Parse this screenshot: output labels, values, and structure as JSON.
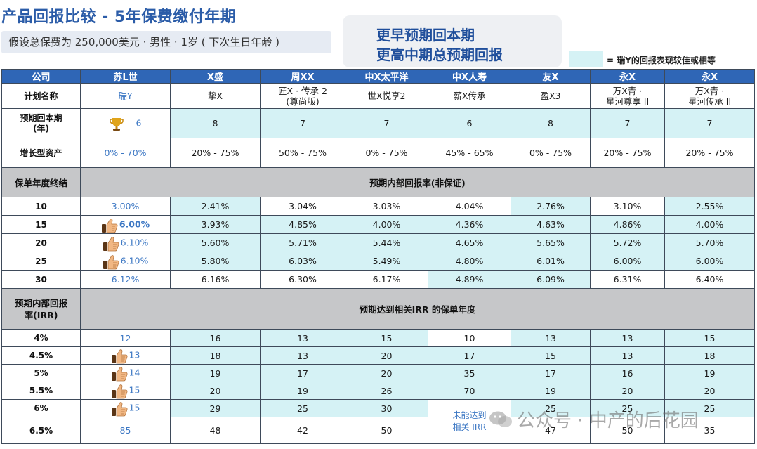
{
  "header": {
    "title": "产品回报比较 - 5年保费缴付年期",
    "subtitle": "假设总保费为 250,000美元 · 男性 · 1岁 ( 下次生日年龄 )",
    "highlight_line1": "更早预期回本期",
    "highlight_line2": "更高中期总预期回报",
    "legend_text": "= 瑞Y的回报表现较佳或相等"
  },
  "colors": {
    "header_blue": "#2f66b6",
    "highlight_cyan": "#d5f2f5",
    "section_gray": "#c6c7c9",
    "value_blue": "#3d78c4"
  },
  "table": {
    "columns": [
      "公司",
      "苏L世",
      "X盛",
      "周XX",
      "中X太平洋",
      "中X人寿",
      "友X",
      "永X",
      "永X"
    ],
    "plan_row": {
      "label": "计划名称",
      "values": [
        "瑞Y",
        "挚X",
        "匠X · 传承 2\n(尊尚版)",
        "世X悦享2",
        "薪X传承",
        "盈X3",
        "万X青 ·\n星河尊享 II",
        "万X青 ·\n星河传承 II"
      ]
    },
    "breakeven_row": {
      "label": "预期回本期\n(年)",
      "icon": "trophy-icon",
      "values": [
        "6",
        "8",
        "7",
        "7",
        "6",
        "8",
        "7",
        "7"
      ]
    },
    "growth_row": {
      "label": "增长型资产",
      "values": [
        "0% - 70%",
        "20% - 75%",
        "50% - 75%",
        "0% - 75%",
        "45% - 65%",
        "0% - 75%",
        "20% - 75%",
        "20% - 75%"
      ]
    },
    "section1": {
      "label": "保单年度终结",
      "title": "预期内部回报率(非保证)"
    },
    "irr_rows": [
      {
        "year": "10",
        "icon": "",
        "values": [
          "3.00%",
          "2.41%",
          "3.04%",
          "3.03%",
          "4.04%",
          "2.76%",
          "3.10%",
          "2.55%"
        ]
      },
      {
        "year": "15",
        "icon": "thumbs-up-icon",
        "values": [
          "6.00%",
          "3.93%",
          "4.85%",
          "4.00%",
          "4.36%",
          "4.63%",
          "4.86%",
          "4.00%"
        ]
      },
      {
        "year": "20",
        "icon": "thumbs-up-icon",
        "values": [
          "6.10%",
          "5.60%",
          "5.71%",
          "5.44%",
          "4.65%",
          "5.65%",
          "5.72%",
          "5.70%"
        ]
      },
      {
        "year": "25",
        "icon": "thumbs-up-icon",
        "values": [
          "6.10%",
          "5.80%",
          "6.03%",
          "5.49%",
          "4.80%",
          "6.01%",
          "6.00%",
          "6.00%"
        ]
      },
      {
        "year": "30",
        "icon": "",
        "values": [
          "6.12%",
          "6.16%",
          "6.30%",
          "6.17%",
          "4.89%",
          "6.09%",
          "6.31%",
          "6.40%"
        ]
      }
    ],
    "section2": {
      "label": "预期内部回报\n率(IRR)",
      "title": "预期达到相关IRR 的保单年度"
    },
    "year_rows": [
      {
        "irr": "4%",
        "icon": "",
        "values": [
          "12",
          "16",
          "13",
          "15",
          "10",
          "13",
          "13",
          "15"
        ]
      },
      {
        "irr": "4.5%",
        "icon": "thumbs-up-icon",
        "values": [
          "13",
          "18",
          "13",
          "20",
          "17",
          "15",
          "13",
          "18"
        ]
      },
      {
        "irr": "5%",
        "icon": "thumbs-up-icon",
        "values": [
          "14",
          "19",
          "17",
          "20",
          "35",
          "17",
          "16",
          "19"
        ]
      },
      {
        "irr": "5.5%",
        "icon": "thumbs-up-icon",
        "values": [
          "15",
          "20",
          "19",
          "26",
          "70",
          "19",
          "20",
          "20"
        ]
      },
      {
        "irr": "6%",
        "icon": "thumbs-up-icon",
        "values": [
          "15",
          "29",
          "25",
          "30",
          "",
          "25",
          "25",
          "25"
        ]
      },
      {
        "irr": "6.5%",
        "icon": "",
        "values": [
          "85",
          "48",
          "42",
          "50",
          "",
          "47",
          "50",
          "35"
        ]
      }
    ],
    "not_reached": "未能达到\n相关 IRR"
  },
  "watermark": "公众号 · 中产的后花园"
}
